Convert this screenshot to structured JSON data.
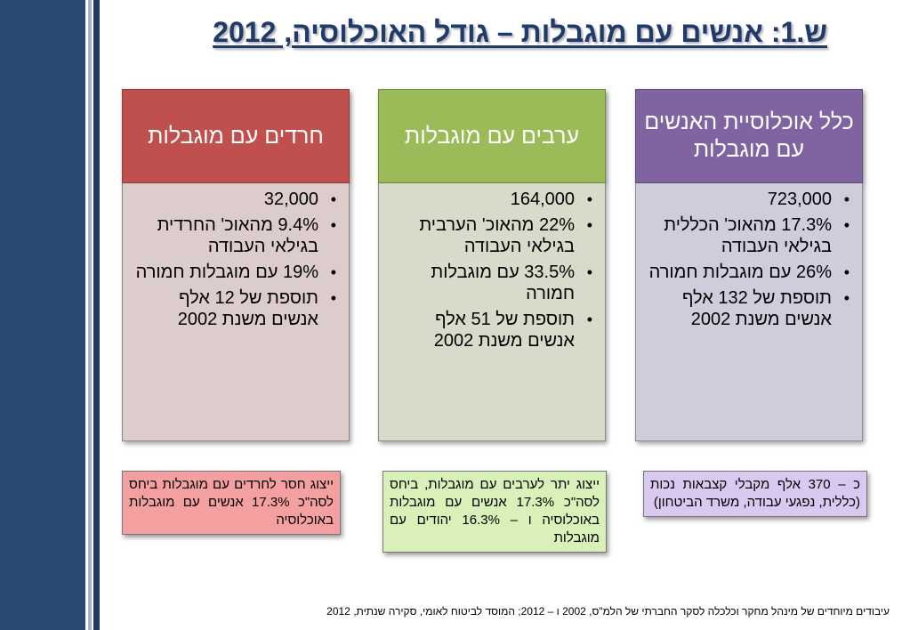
{
  "title": "ש.1: אנשים עם מוגבלות – גודל האוכלוסיה, 2012",
  "columns": [
    {
      "header": "כלל אוכלוסיית האנשים עם מוגבלות",
      "items": [
        "723,000",
        "17.3% מהאוכ' הכללית בגילאי העבודה",
        "26% עם מוגבלות חמורה",
        "תוספת של 132 אלף אנשים משנת 2002"
      ]
    },
    {
      "header": "ערבים עם מוגבלות",
      "items": [
        "164,000",
        "22% מהאוכ' הערבית בגילאי העבודה",
        "33.5% עם מוגבלות חמורה",
        "תוספת של 51 אלף אנשים משנת 2002"
      ]
    },
    {
      "header": "חרדים עם מוגבלות",
      "items": [
        "32,000",
        "9.4% מהאוכ' החרדית בגילאי העבודה",
        "19% עם מוגבלות חמורה",
        "תוספת של 12 אלף אנשים משנת 2002"
      ]
    }
  ],
  "notes": {
    "general": "כ – 370 אלף מקבלי קצבאות נכות (כללית, נפגעי עבודה, משרד הביטחון)",
    "arabs": "ייצוג יתר לערבים עם מוגבלות, ביחס לסה\"כ 17.3% אנשים עם מוגבלות באוכלוסיה ו – 16.3% יהודים עם מוגבלות",
    "haredim": "ייצוג חסר לחרדים עם מוגבלות ביחס לסה\"כ 17.3% אנשים עם מוגבלות באוכלוסיה"
  },
  "footer": "עיבודים מיוחדים של מינהל מחקר וכלכלה לסקר החברתי של הלמ\"ס, 2002 ו – 2012; המוסד לביטוח לאומי, סקירה שנתית, 2012",
  "colors": {
    "general_header": "#8064a2",
    "general_body": "#cfccdc",
    "arabs_header": "#9bbb59",
    "arabs_body": "#d7dcca",
    "haredim_header": "#c0504d",
    "haredim_body": "#ddcccc",
    "note_general": "#d9c8f0",
    "note_arabs": "#d9f0b8",
    "note_haredim": "#f5a0a0",
    "title": "#1f3a6b",
    "sidebar": "#2b4a72"
  }
}
